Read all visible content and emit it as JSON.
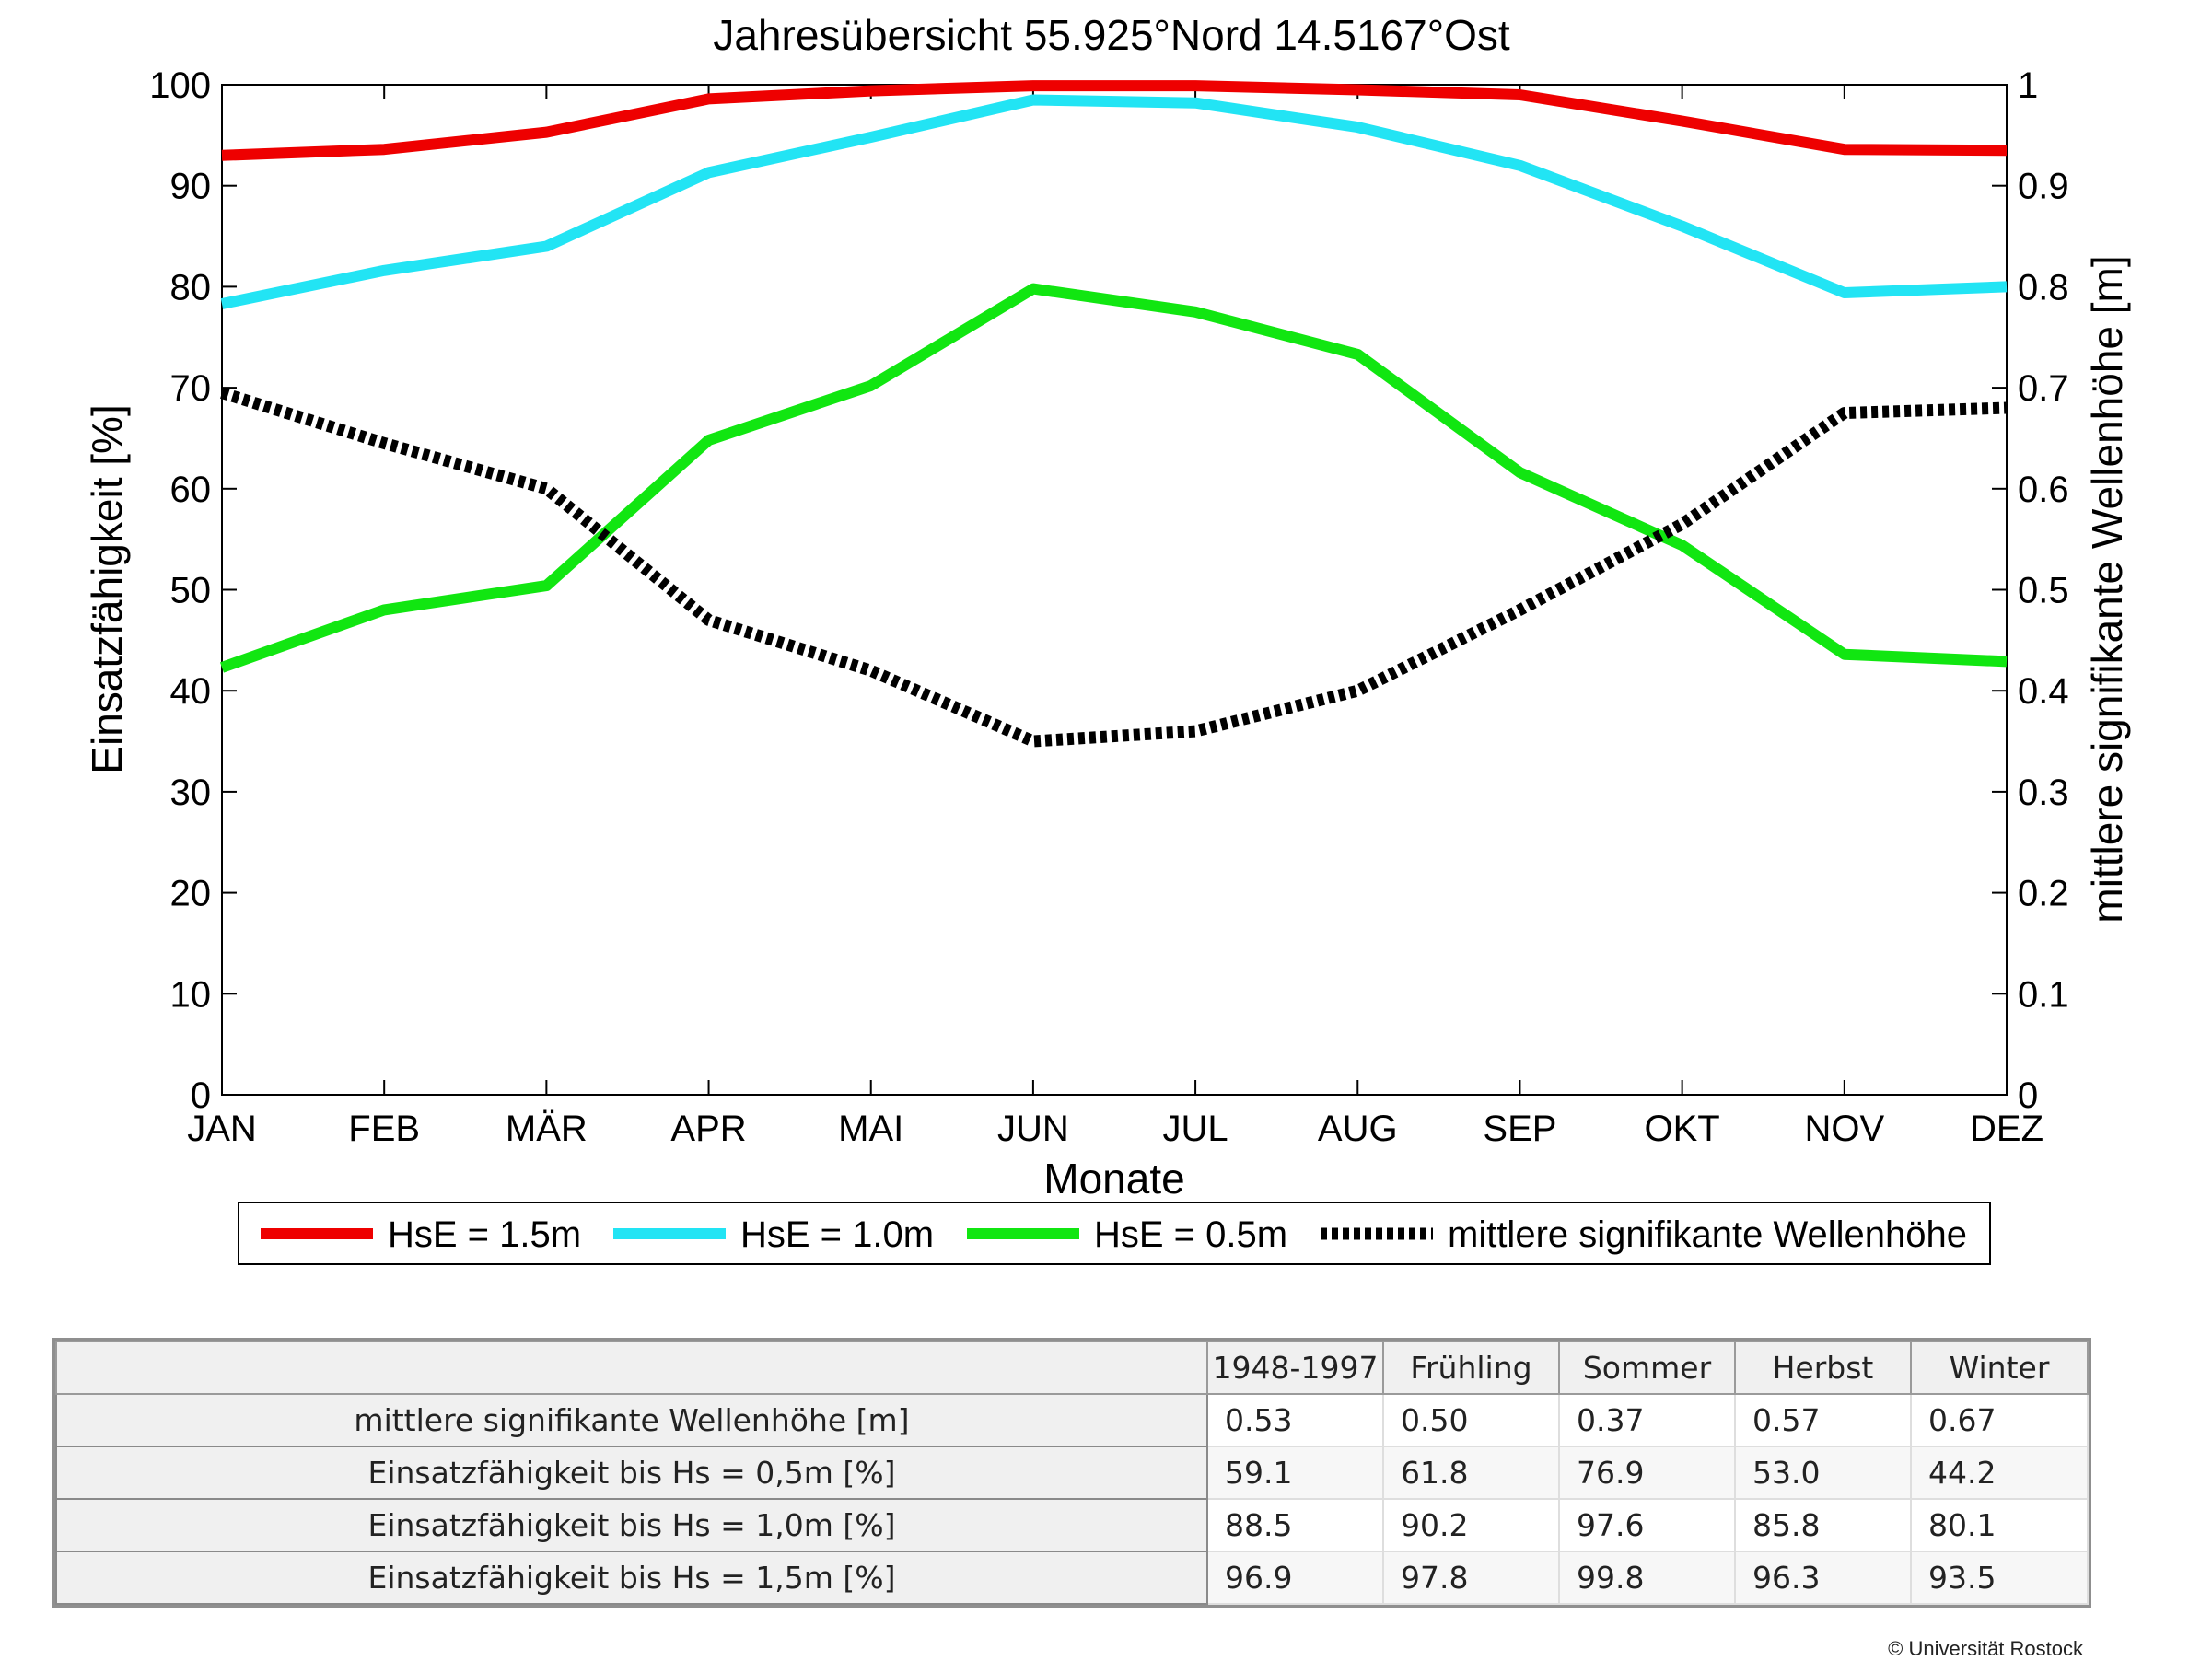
{
  "chart_data": {
    "type": "line",
    "title": "Jahresübersicht  55.925°Nord  14.5167°Ost",
    "xlabel": "Monate",
    "ylabel": "Einsatzfähigkeit [%]",
    "ylabel_right": "mittlere signifikante Wellenhöhe [m]",
    "categories": [
      "JAN",
      "FEB",
      "MÄR",
      "APR",
      "MAI",
      "JUN",
      "JUL",
      "AUG",
      "SEP",
      "OKT",
      "NOV",
      "DEZ"
    ],
    "ylim": [
      0,
      100
    ],
    "ylim_right": [
      0,
      1
    ],
    "yticks": [
      "0",
      "10",
      "20",
      "30",
      "40",
      "50",
      "60",
      "70",
      "80",
      "90",
      "100"
    ],
    "yticks_right": [
      "0",
      "0.1",
      "0.2",
      "0.3",
      "0.4",
      "0.5",
      "0.6",
      "0.7",
      "0.8",
      "0.9",
      "1"
    ],
    "grid": false,
    "legend_position": "bottom",
    "series": [
      {
        "name": "HsE = 1.5m",
        "axis": "left",
        "color": "#ee0000",
        "style": "solid",
        "values": [
          93.0,
          93.6,
          95.3,
          98.6,
          99.4,
          99.9,
          99.9,
          99.5,
          99.0,
          96.4,
          93.6,
          93.5
        ]
      },
      {
        "name": "HsE = 1.0m",
        "axis": "left",
        "color": "#22e4f4",
        "style": "solid",
        "values": [
          78.3,
          81.6,
          84.0,
          91.3,
          94.8,
          98.5,
          98.2,
          95.8,
          92.0,
          86.0,
          79.4,
          80.0
        ]
      },
      {
        "name": "HsE = 0.5m",
        "axis": "left",
        "color": "#11e611",
        "style": "solid",
        "values": [
          42.3,
          48.0,
          50.4,
          64.8,
          70.2,
          79.8,
          77.5,
          73.3,
          61.6,
          54.4,
          43.6,
          42.9
        ]
      },
      {
        "name": "mittlere signifikante Wellenhöhe",
        "axis": "right",
        "color": "#000000",
        "style": "dotted",
        "values": [
          0.695,
          0.645,
          0.6,
          0.47,
          0.42,
          0.35,
          0.36,
          0.4,
          0.48,
          0.565,
          0.675,
          0.68
        ]
      }
    ]
  },
  "table": {
    "columns": [
      "1948-1997",
      "Frühling",
      "Sommer",
      "Herbst",
      "Winter"
    ],
    "rows": [
      {
        "label": "mittlere signifikante Wellenhöhe [m]",
        "values": [
          "0.53",
          "0.50",
          "0.37",
          "0.57",
          "0.67"
        ]
      },
      {
        "label": "Einsatzfähigkeit bis Hs = 0,5m [%]",
        "values": [
          "59.1",
          "61.8",
          "76.9",
          "53.0",
          "44.2"
        ]
      },
      {
        "label": "Einsatzfähigkeit bis Hs = 1,0m [%]",
        "values": [
          "88.5",
          "90.2",
          "97.6",
          "85.8",
          "80.1"
        ]
      },
      {
        "label": "Einsatzfähigkeit bis Hs = 1,5m [%]",
        "values": [
          "96.9",
          "97.8",
          "99.8",
          "96.3",
          "93.5"
        ]
      }
    ]
  },
  "copyright": "© Universität Rostock"
}
